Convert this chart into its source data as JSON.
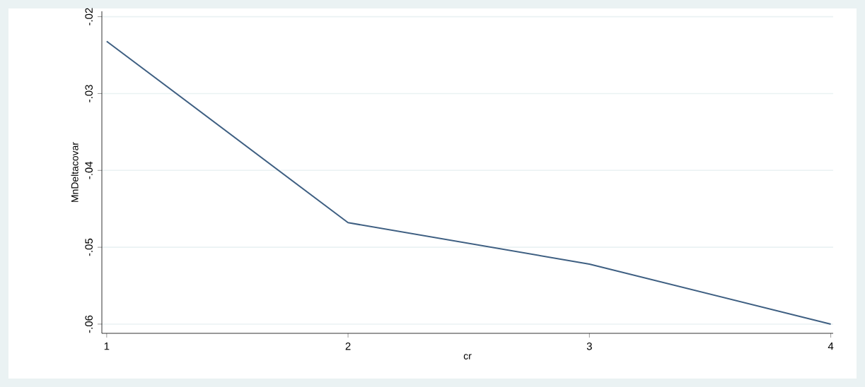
{
  "chart_data": {
    "type": "line",
    "xlabel": "cr",
    "ylabel": "MnDeltacovar",
    "x": [
      1,
      2,
      3,
      4
    ],
    "values": [
      -0.0232,
      -0.0468,
      -0.0522,
      -0.06
    ],
    "color": "#3e5f82",
    "xlim": [
      0.98,
      4.01
    ],
    "ylim": [
      -0.0612,
      -0.0193
    ],
    "xticks": [
      1,
      2,
      3,
      4
    ],
    "yticks": [
      {
        "value": -0.06,
        "label": "-.06"
      },
      {
        "value": -0.05,
        "label": "-.05"
      },
      {
        "value": -0.04,
        "label": "-.04"
      },
      {
        "value": -0.03,
        "label": "-.03"
      },
      {
        "value": -0.02,
        "label": "-.02"
      }
    ],
    "grid": "y"
  }
}
